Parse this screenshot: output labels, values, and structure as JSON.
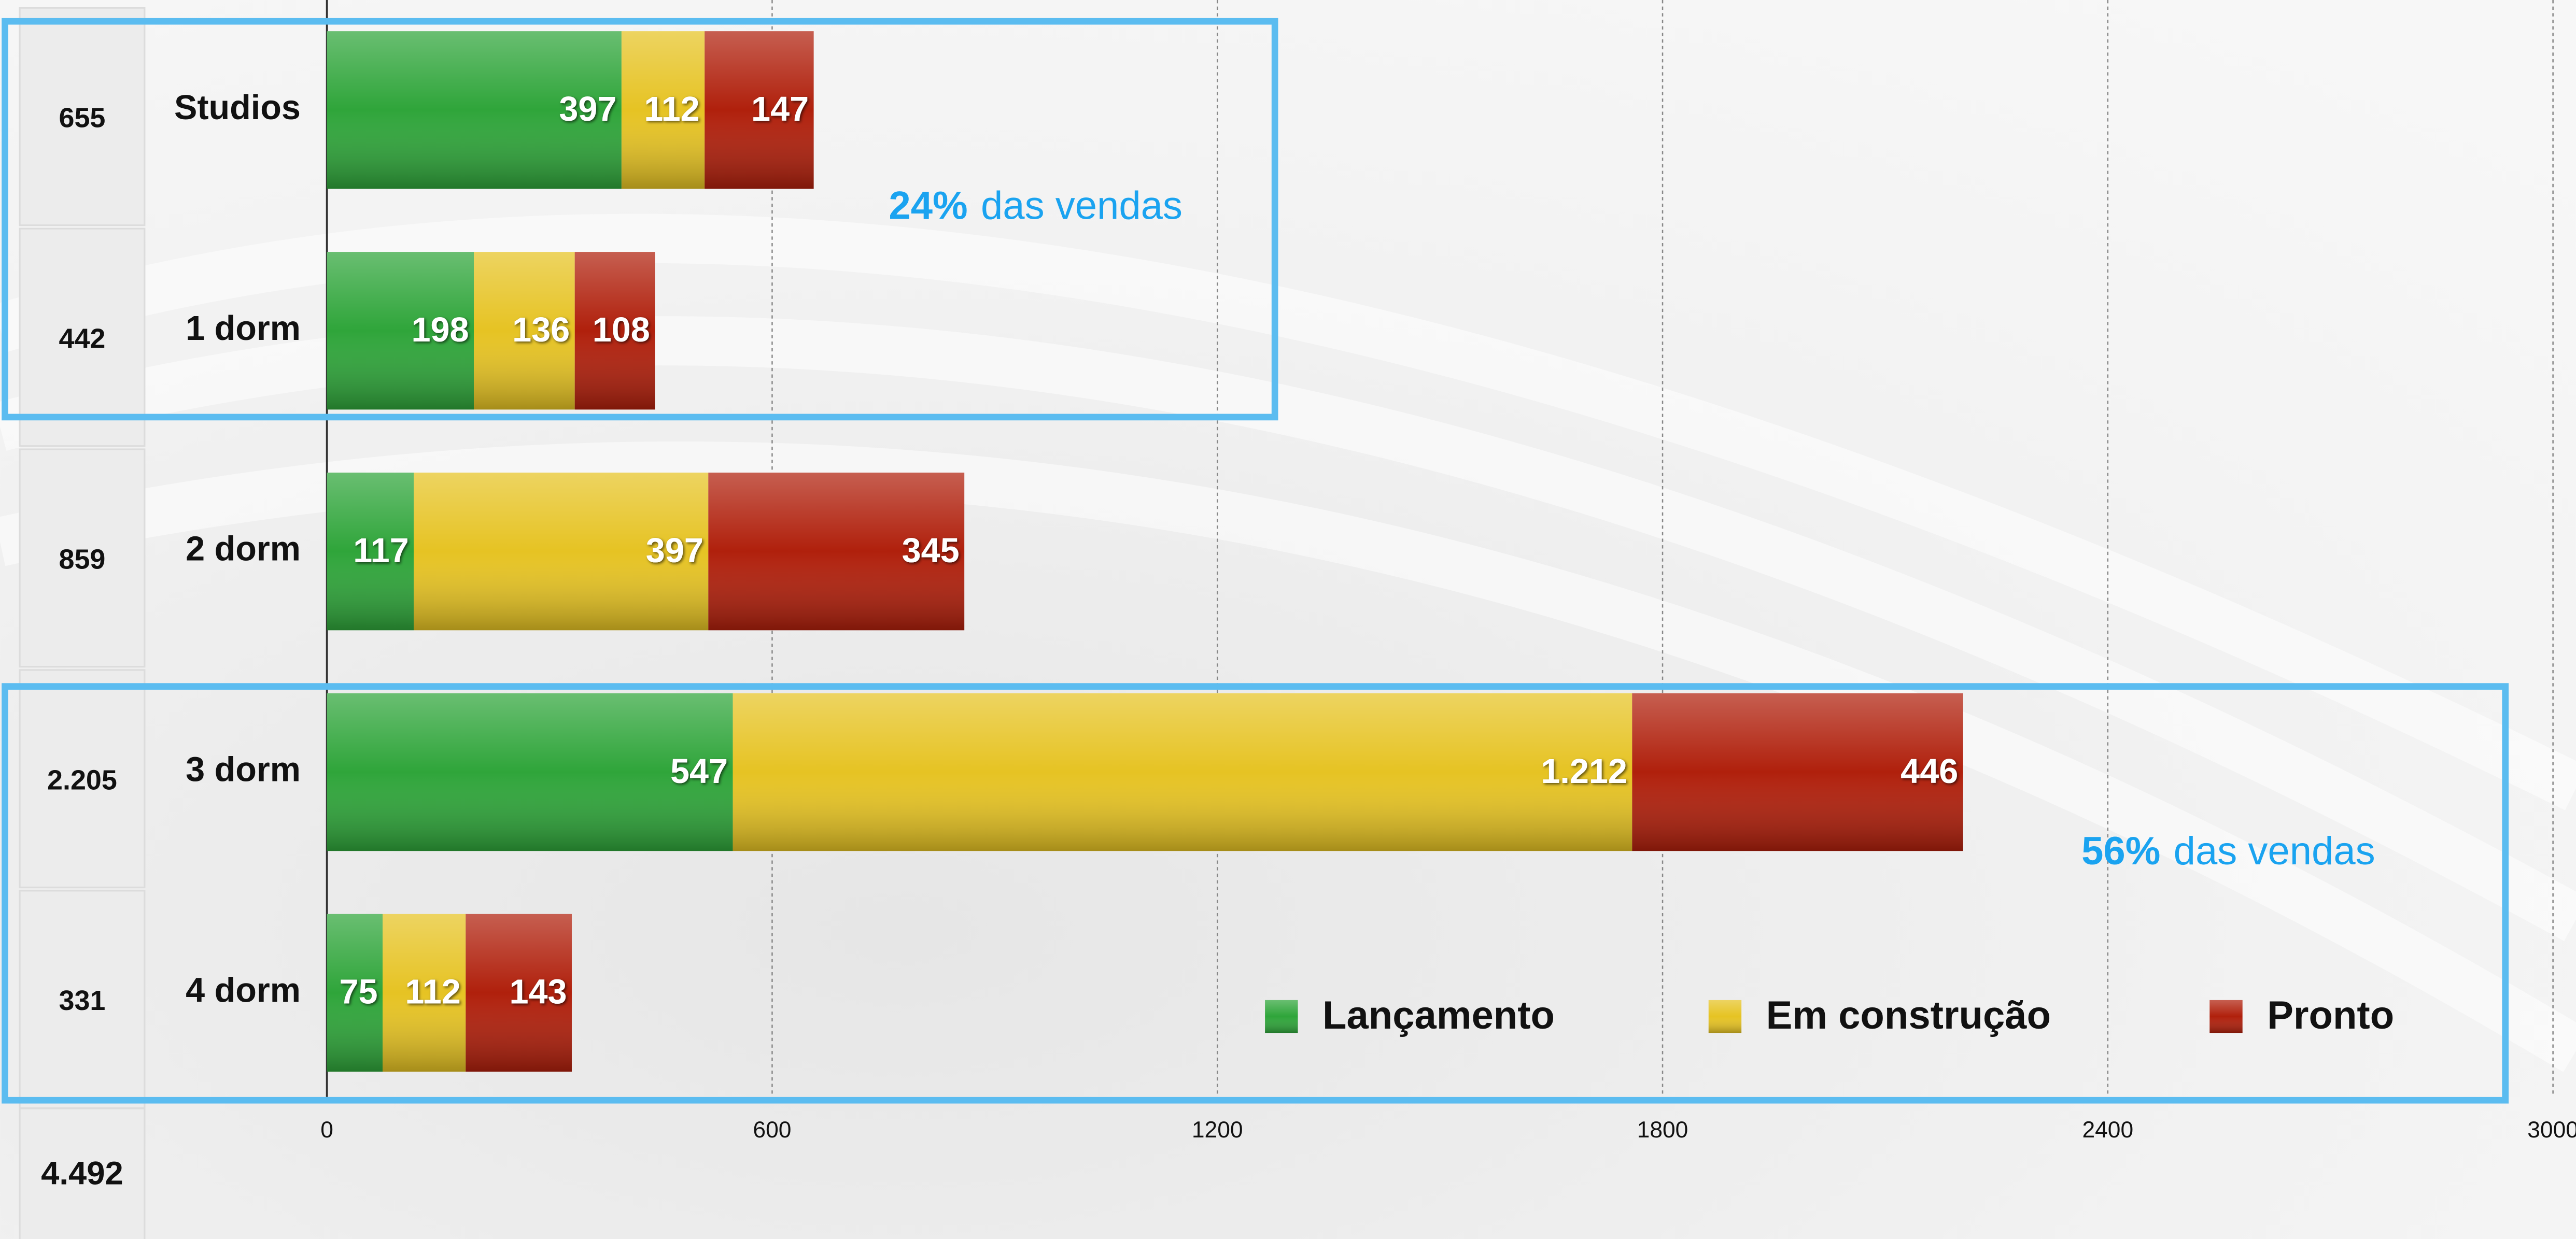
{
  "chart_data": {
    "type": "stacked_barh",
    "categories": [
      "Studios",
      "1 dorm",
      "2 dorm",
      "3 dorm",
      "4 dorm"
    ],
    "series": [
      {
        "name": "Lançamento",
        "color": "#2fa53a",
        "values": [
          397,
          198,
          117,
          547,
          75
        ]
      },
      {
        "name": "Em construção",
        "color": "#e6c323",
        "values": [
          112,
          136,
          397,
          1212,
          112
        ],
        "value_labels": [
          "112",
          "136",
          "397",
          "1.212",
          "112"
        ]
      },
      {
        "name": "Pronto",
        "color": "#b0200c",
        "values": [
          147,
          108,
          345,
          446,
          143
        ]
      }
    ],
    "row_totals": {
      "values": [
        655,
        442,
        859,
        2205,
        331
      ],
      "value_labels": [
        "655",
        "442",
        "859",
        "2.205",
        "331"
      ]
    },
    "grand_total": {
      "value": 4492,
      "label": "4.492"
    },
    "annotations": [
      {
        "percent": "24%",
        "text": "das vendas"
      },
      {
        "percent": "56%",
        "text": "das vendas"
      }
    ],
    "xlim": [
      0,
      3000
    ],
    "xticks": [
      0,
      600,
      1200,
      1800,
      2400,
      3000
    ],
    "grid": true,
    "legend": "lower right"
  }
}
